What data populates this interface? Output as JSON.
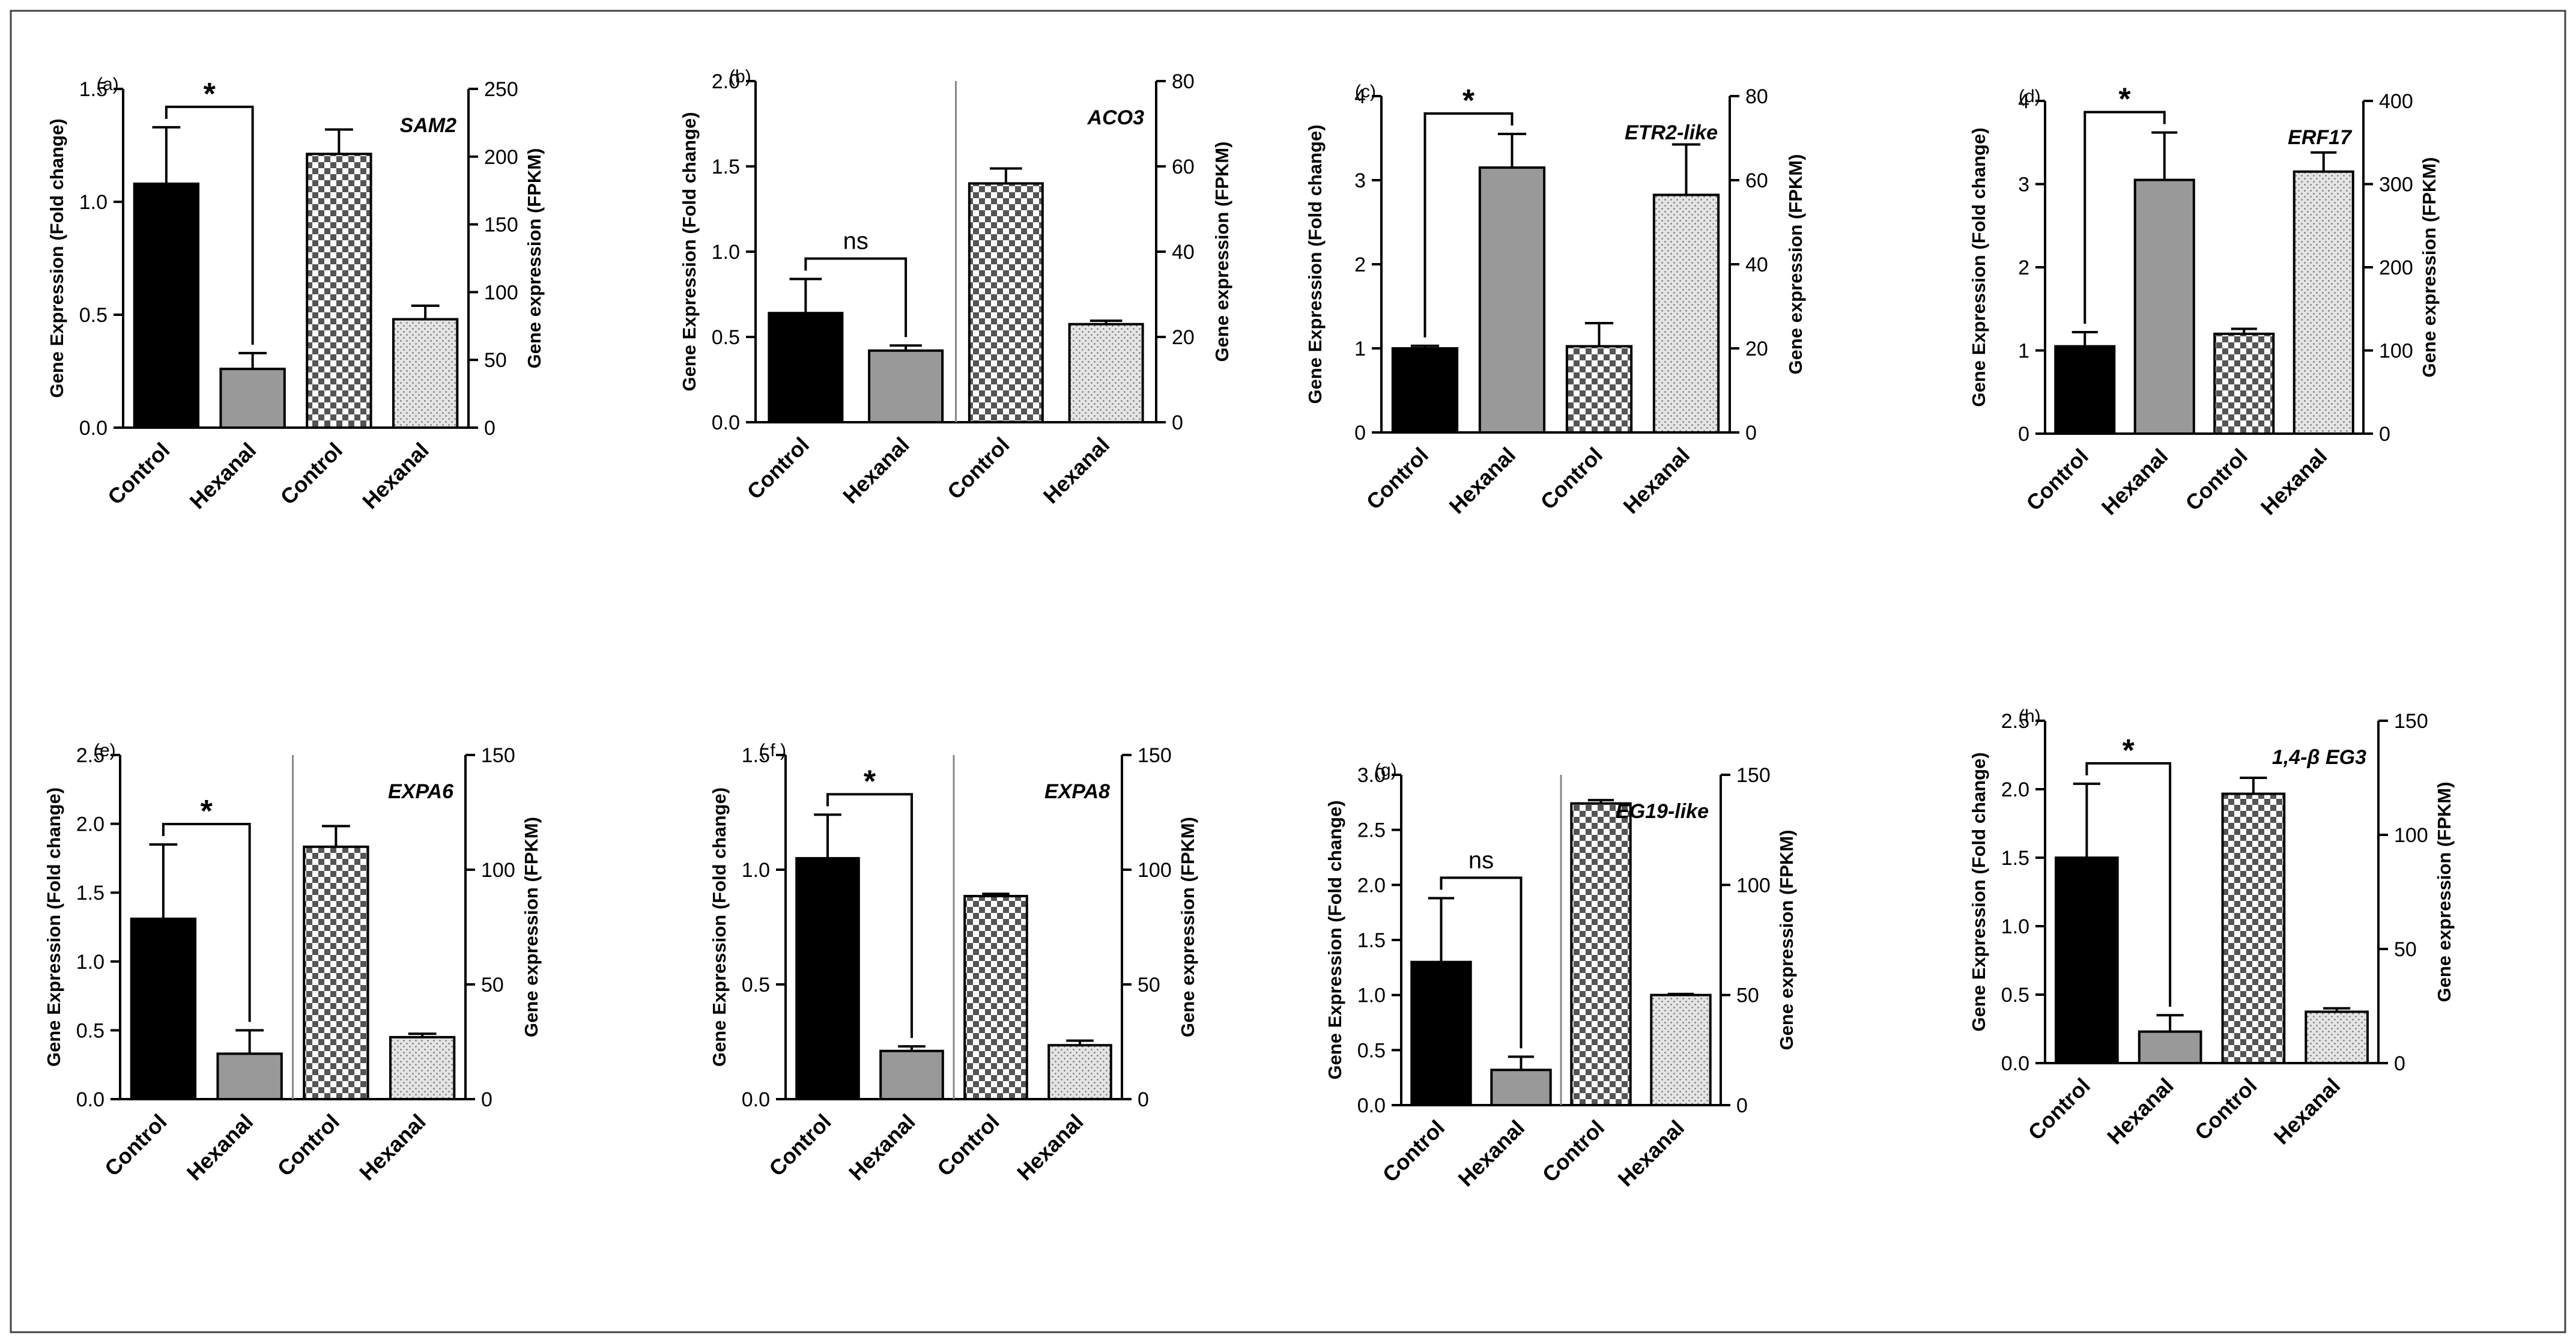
{
  "figure": {
    "description_free": true,
    "colors": {
      "control_qpcr": "#000000",
      "hexanal_qpcr": "#999999",
      "checker_dark": "#555555",
      "checker_light": "#ffffff",
      "dots_bg": "#e4e4e4",
      "dots_fg": "#6e6e6e",
      "axis": "#000000",
      "border": "#444444"
    }
  },
  "chart_data": [
    {
      "type": "bar",
      "panel_label": "(a)",
      "gene": "SAM2",
      "categories": [
        "Control",
        "Hexanal",
        "Control",
        "Hexanal"
      ],
      "ylabel_left": "Gene Expression (Fold change)",
      "ylabel_right": "Gene expression (FPKM)",
      "left_ylim": [
        0,
        1.5
      ],
      "left_ticks": [
        "0.0",
        "0.5",
        "1.0",
        "1.5"
      ],
      "right_ylim": [
        0,
        250
      ],
      "right_ticks": [
        "0",
        "50",
        "100",
        "150",
        "200",
        "250"
      ],
      "fold_change": {
        "values": [
          1.08,
          0.26
        ],
        "errors": [
          0.25,
          0.07
        ]
      },
      "fpkm": {
        "values": [
          202,
          80
        ],
        "errors": [
          18,
          10
        ]
      },
      "significance": "*",
      "divider": false
    },
    {
      "type": "bar",
      "panel_label": "(b)",
      "gene": "ACO3",
      "categories": [
        "Control",
        "Hexanal",
        "Control",
        "Hexanal"
      ],
      "ylabel_left": "Gene Expression (Fold change)",
      "ylabel_right": "Gene expression (FPKM)",
      "left_ylim": [
        0,
        2.0
      ],
      "left_ticks": [
        "0.0",
        "0.5",
        "1.0",
        "1.5",
        "2.0"
      ],
      "right_ylim": [
        0,
        80
      ],
      "right_ticks": [
        "0",
        "20",
        "40",
        "60",
        "80"
      ],
      "fold_change": {
        "values": [
          0.64,
          0.42
        ],
        "errors": [
          0.2,
          0.03
        ]
      },
      "fpkm": {
        "values": [
          56,
          23
        ],
        "errors": [
          3.5,
          0.8
        ]
      },
      "significance": "ns",
      "divider": true
    },
    {
      "type": "bar",
      "panel_label": "(c)",
      "gene": "ETR2-like",
      "categories": [
        "Control",
        "Hexanal",
        "Control",
        "Hexanal"
      ],
      "ylabel_left": "Gene Expression (Fold change)",
      "ylabel_right": "Gene expression (FPKM)",
      "left_ylim": [
        0,
        4
      ],
      "left_ticks": [
        "0",
        "1",
        "2",
        "3",
        "4"
      ],
      "right_ylim": [
        0,
        80
      ],
      "right_ticks": [
        "0",
        "20",
        "40",
        "60",
        "80"
      ],
      "fold_change": {
        "values": [
          1.0,
          3.15
        ],
        "errors": [
          0.03,
          0.4
        ]
      },
      "fpkm": {
        "values": [
          20.5,
          56.5
        ],
        "errors": [
          5.5,
          12
        ]
      },
      "significance": "*",
      "divider": false
    },
    {
      "type": "bar",
      "panel_label": "(d)",
      "gene": "ERF17",
      "categories": [
        "Control",
        "Hexanal",
        "Control",
        "Hexanal"
      ],
      "ylabel_left": "Gene Expression (Fold change)",
      "ylabel_right": "Gene expression (FPKM)",
      "left_ylim": [
        0,
        4
      ],
      "left_ticks": [
        "0",
        "1",
        "2",
        "3",
        "4"
      ],
      "right_ylim": [
        0,
        400
      ],
      "right_ticks": [
        "0",
        "100",
        "200",
        "300",
        "400"
      ],
      "fold_change": {
        "values": [
          1.05,
          3.05
        ],
        "errors": [
          0.17,
          0.57
        ]
      },
      "fpkm": {
        "values": [
          120,
          315
        ],
        "errors": [
          6,
          23
        ]
      },
      "significance": "*",
      "divider": false
    },
    {
      "type": "bar",
      "panel_label": "(e)",
      "gene": "EXPA6",
      "categories": [
        "Control",
        "Hexanal",
        "Control",
        "Hexanal"
      ],
      "ylabel_left": "Gene Expression (Fold change)",
      "ylabel_right": "Gene expression (FPKM)",
      "left_ylim": [
        0,
        2.5
      ],
      "left_ticks": [
        "0.0",
        "0.5",
        "1.0",
        "1.5",
        "2.0",
        "2.5"
      ],
      "right_ylim": [
        0,
        150
      ],
      "right_ticks": [
        "0",
        "50",
        "100",
        "150"
      ],
      "fold_change": {
        "values": [
          1.31,
          0.33
        ],
        "errors": [
          0.54,
          0.17
        ]
      },
      "fpkm": {
        "values": [
          110,
          27
        ],
        "errors": [
          9,
          1.5
        ]
      },
      "significance": "*",
      "divider": true
    },
    {
      "type": "bar",
      "panel_label": "( f )",
      "gene": "EXPA8",
      "categories": [
        "Control",
        "Hexanal",
        "Control",
        "Hexanal"
      ],
      "ylabel_left": "Gene Expression (Fold change)",
      "ylabel_right": "Gene expression (FPKM)",
      "left_ylim": [
        0,
        1.5
      ],
      "left_ticks": [
        "0.0",
        "0.5",
        "1.0",
        "1.5"
      ],
      "right_ylim": [
        0,
        150
      ],
      "right_ticks": [
        "0",
        "50",
        "100",
        "150"
      ],
      "fold_change": {
        "values": [
          1.05,
          0.21
        ],
        "errors": [
          0.19,
          0.02
        ]
      },
      "fpkm": {
        "values": [
          88.5,
          23.5
        ],
        "errors": [
          1,
          2
        ]
      },
      "significance": "*",
      "divider": true
    },
    {
      "type": "bar",
      "panel_label": "(g)",
      "gene": "EG19-like",
      "categories": [
        "Control",
        "Hexanal",
        "Control",
        "Hexanal"
      ],
      "ylabel_left": "Gene Expression (Fold change)",
      "ylabel_right": "Gene expression (FPKM)",
      "left_ylim": [
        0,
        3.0
      ],
      "left_ticks": [
        "0.0",
        "0.5",
        "1.0",
        "1.5",
        "2.0",
        "2.5",
        "3.0"
      ],
      "right_ylim": [
        0,
        150
      ],
      "right_ticks": [
        "0",
        "50",
        "100",
        "150"
      ],
      "fold_change": {
        "values": [
          1.3,
          0.32
        ],
        "errors": [
          0.58,
          0.12
        ]
      },
      "fpkm": {
        "values": [
          137,
          50
        ],
        "errors": [
          1.5,
          0.5
        ]
      },
      "significance": "ns",
      "divider": true
    },
    {
      "type": "bar",
      "panel_label": "(h)",
      "gene": "1,4-β EG3",
      "categories": [
        "Control",
        "Hexanal",
        "Control",
        "Hexanal"
      ],
      "ylabel_left": "Gene Expression (Fold change)",
      "ylabel_right": "Gene expression (FPKM)",
      "left_ylim": [
        0,
        2.5
      ],
      "left_ticks": [
        "0.0",
        "0.5",
        "1.0",
        "1.5",
        "2.0",
        "2.5"
      ],
      "right_ylim": [
        0,
        150
      ],
      "right_ticks": [
        "0",
        "50",
        "100",
        "150"
      ],
      "fold_change": {
        "values": [
          1.5,
          0.23
        ],
        "errors": [
          0.54,
          0.12
        ]
      },
      "fpkm": {
        "values": [
          118,
          22.5
        ],
        "errors": [
          7,
          1.5
        ]
      },
      "significance": "*",
      "divider": false
    }
  ]
}
